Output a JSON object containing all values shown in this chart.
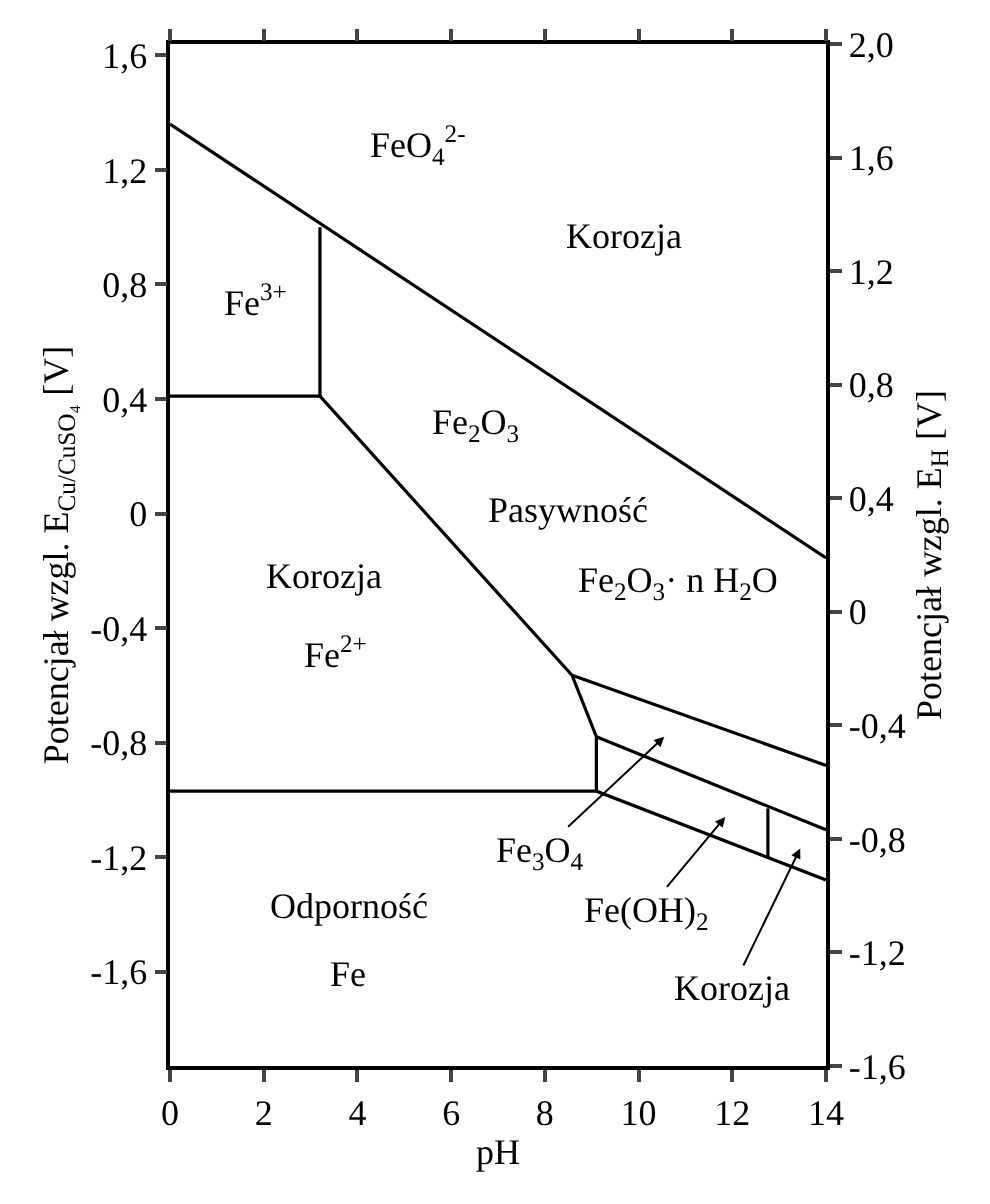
{
  "chart_data": {
    "type": "line",
    "xlabel": "pH",
    "ylabel": "Potencjał wzgl. E$_{Cu/CuSO₄}$ [V]",
    "y2label": "Potencjał wzgl. E$_{H}$ [V]",
    "xlim": [
      0,
      14
    ],
    "xticks": [
      0,
      2,
      4,
      6,
      8,
      10,
      12,
      14
    ],
    "ylim": [
      -1.93,
      1.64
    ],
    "yticks": [
      {
        "value": 1.6,
        "label": "1,6"
      },
      {
        "value": 1.2,
        "label": "1,2"
      },
      {
        "value": 0.8,
        "label": "0,8"
      },
      {
        "value": 0.4,
        "label": "0,4"
      },
      0,
      {
        "value": -0.4,
        "label": "-0,4"
      },
      {
        "value": -0.8,
        "label": "-0,8"
      },
      {
        "value": -1.2,
        "label": "-1,2"
      },
      {
        "value": -1.6,
        "label": "-1,6"
      }
    ],
    "y2lim": [
      -1.6,
      2.0
    ],
    "y2ticks": [
      {
        "value": 2.0,
        "label": "2,0"
      },
      {
        "value": 1.6,
        "label": "1,6"
      },
      {
        "value": 1.2,
        "label": "1,2"
      },
      {
        "value": 0.8,
        "label": "0,8"
      },
      {
        "value": 0.4,
        "label": "0,4"
      },
      0,
      {
        "value": -0.4,
        "label": "-0,4"
      },
      {
        "value": -0.8,
        "label": "-0,8"
      },
      {
        "value": -1.2,
        "label": "-1,2"
      },
      {
        "value": -1.6,
        "label": "-1,6"
      }
    ],
    "marker": "none",
    "line_style": "solid",
    "series": [
      {
        "color": "#000000",
        "x": [
          0,
          14
        ],
        "values": [
          1.36,
          -0.155
        ]
      },
      {
        "color": "#000000",
        "x": [
          0,
          3.2,
          8.58,
          9.1,
          9.1
        ],
        "values": [
          0.41,
          0.41,
          -0.565,
          -0.78,
          -0.97
        ]
      },
      {
        "color": "#000000",
        "x": [
          3.2,
          3.2
        ],
        "values": [
          0.41,
          1.0
        ]
      },
      {
        "color": "#000000",
        "x": [
          0,
          9.1,
          14
        ],
        "values": [
          -0.97,
          -0.97,
          -1.28
        ]
      },
      {
        "color": "#000000",
        "x": [
          8.58,
          14
        ],
        "values": [
          -0.565,
          -0.88
        ]
      },
      {
        "color": "#000000",
        "x": [
          9.1,
          14
        ],
        "values": [
          -0.78,
          -1.105
        ]
      },
      {
        "color": "#000000",
        "x": [
          12.76,
          12.76
        ],
        "values": [
          -1.03,
          -1.2
        ]
      }
    ],
    "annotations": [
      "FeO$_{4}$$^{2-}$",
      "Korozja",
      "Fe$^{3+}$",
      "Fe$_{2}$O$_{3}$",
      "Pasywność",
      "Fe$_{2}$O$_{3}$· n H$_{2}$O",
      "Korozja",
      "Fe$^{2+}$",
      "Odporność",
      "Fe",
      "Fe$_{3}$O$_{4}$",
      "Fe(OH)$_{2}$",
      "Korozja"
    ]
  }
}
